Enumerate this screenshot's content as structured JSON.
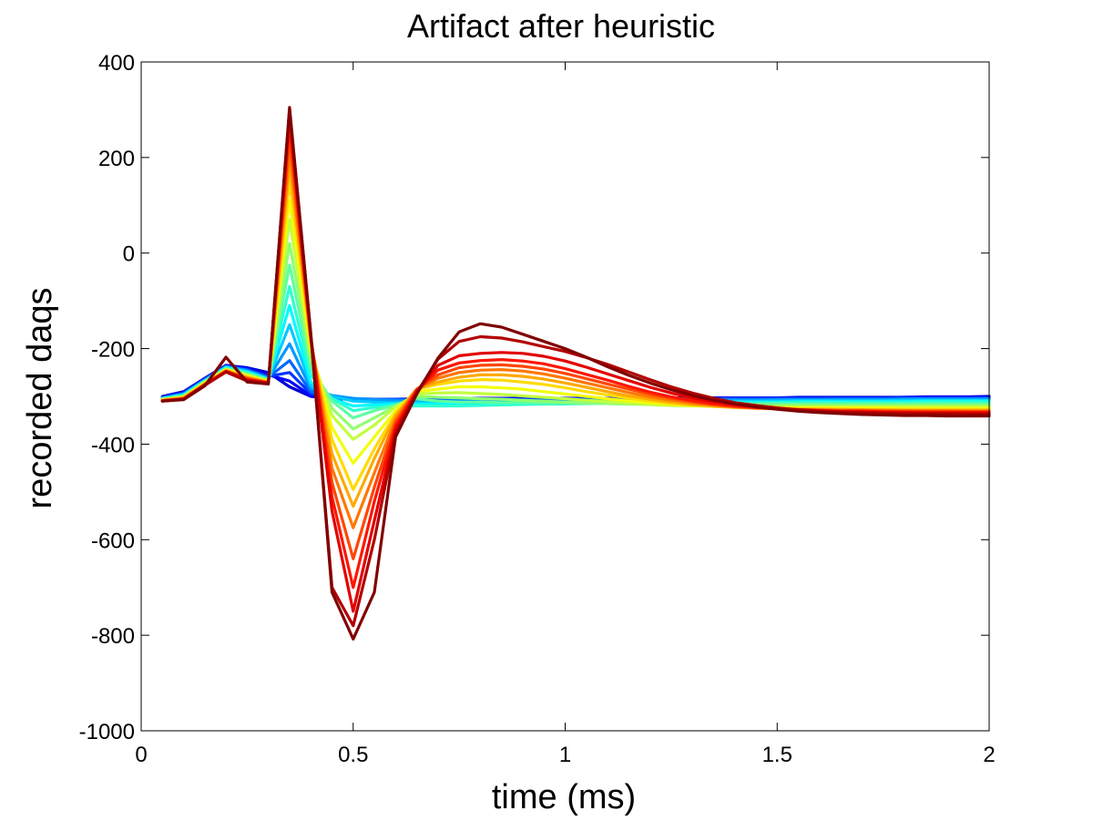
{
  "chart_data": {
    "type": "line",
    "title": "Artifact after heuristic",
    "xlabel": "time (ms)",
    "ylabel": "recorded daqs",
    "xlim": [
      0,
      2
    ],
    "ylim": [
      -1000,
      400
    ],
    "xticks": [
      0,
      0.5,
      1,
      1.5,
      2
    ],
    "xtick_labels": [
      "0",
      "0.5",
      "1",
      "1.5",
      "2"
    ],
    "yticks": [
      -1000,
      -800,
      -600,
      -400,
      -200,
      0,
      200,
      400
    ],
    "ytick_labels": [
      "-1000",
      "-800",
      "-600",
      "-400",
      "-200",
      "0",
      "200",
      "400"
    ],
    "grid": false,
    "legend": "none",
    "colormap": "jet",
    "x": [
      0.05,
      0.1,
      0.15,
      0.2,
      0.25,
      0.3,
      0.35,
      0.4,
      0.45,
      0.5,
      0.55,
      0.6,
      0.65,
      0.7,
      0.75,
      0.8,
      0.85,
      0.9,
      0.95,
      1.0,
      1.05,
      1.1,
      1.15,
      1.2,
      1.25,
      1.3,
      1.35,
      1.4,
      1.45,
      1.5,
      1.55,
      1.6,
      1.65,
      1.7,
      1.75,
      1.8,
      1.85,
      1.9,
      1.95,
      2.0
    ],
    "series": [
      {
        "values": [
          -300,
          -290,
          -262,
          -235,
          -240,
          -250,
          -280,
          -300,
          -305,
          -306,
          -306,
          -306,
          -305,
          -305,
          -304,
          -304,
          -304,
          -304,
          -304,
          -304,
          -304,
          -304,
          -303,
          -303,
          -303,
          -303,
          -303,
          -303,
          -303,
          -303,
          -302,
          -302,
          -302,
          -302,
          -302,
          -302,
          -301,
          -301,
          -301,
          -300
        ]
      },
      {
        "values": [
          -302,
          -292,
          -263,
          -236,
          -242,
          -255,
          -268,
          -298,
          -304,
          -306,
          -306,
          -306,
          -306,
          -305,
          -305,
          -305,
          -305,
          -305,
          -305,
          -305,
          -304,
          -304,
          -304,
          -304,
          -304,
          -304,
          -304,
          -304,
          -303,
          -303,
          -303,
          -303,
          -303,
          -303,
          -303,
          -302,
          -302,
          -302,
          -302,
          -302
        ]
      },
      {
        "values": [
          -302,
          -293,
          -264,
          -237,
          -243,
          -258,
          -250,
          -294,
          -303,
          -305,
          -306,
          -306,
          -306,
          -306,
          -306,
          -306,
          -306,
          -306,
          -306,
          -305,
          -305,
          -305,
          -305,
          -305,
          -305,
          -305,
          -305,
          -304,
          -304,
          -304,
          -304,
          -304,
          -304,
          -304,
          -304,
          -303,
          -303,
          -303,
          -303,
          -303
        ]
      },
      {
        "values": [
          -303,
          -294,
          -265,
          -237,
          -245,
          -260,
          -225,
          -290,
          -300,
          -305,
          -306,
          -307,
          -308,
          -308,
          -308,
          -308,
          -308,
          -308,
          -308,
          -308,
          -307,
          -307,
          -307,
          -307,
          -306,
          -306,
          -306,
          -306,
          -306,
          -306,
          -306,
          -306,
          -305,
          -305,
          -305,
          -305,
          -305,
          -305,
          -305,
          -305
        ]
      },
      {
        "values": [
          -304,
          -295,
          -266,
          -238,
          -246,
          -262,
          -190,
          -284,
          -298,
          -304,
          -307,
          -309,
          -310,
          -310,
          -310,
          -310,
          -310,
          -310,
          -310,
          -310,
          -309,
          -309,
          -309,
          -309,
          -308,
          -308,
          -308,
          -308,
          -308,
          -307,
          -307,
          -307,
          -307,
          -307,
          -307,
          -306,
          -306,
          -306,
          -306,
          -306
        ]
      },
      {
        "values": [
          -304,
          -296,
          -267,
          -239,
          -248,
          -263,
          -150,
          -278,
          -300,
          -310,
          -312,
          -313,
          -313,
          -313,
          -313,
          -313,
          -313,
          -312,
          -312,
          -312,
          -311,
          -311,
          -311,
          -311,
          -310,
          -310,
          -310,
          -310,
          -310,
          -310,
          -309,
          -309,
          -309,
          -309,
          -309,
          -308,
          -308,
          -308,
          -308,
          -308
        ]
      },
      {
        "values": [
          -305,
          -297,
          -268,
          -240,
          -249,
          -264,
          -110,
          -270,
          -305,
          -320,
          -318,
          -316,
          -316,
          -316,
          -316,
          -315,
          -315,
          -315,
          -314,
          -314,
          -313,
          -313,
          -313,
          -313,
          -312,
          -312,
          -312,
          -312,
          -312,
          -312,
          -311,
          -311,
          -311,
          -311,
          -311,
          -311,
          -310,
          -310,
          -310,
          -310
        ]
      },
      {
        "values": [
          -305,
          -298,
          -268,
          -241,
          -251,
          -265,
          -70,
          -255,
          -305,
          -330,
          -323,
          -320,
          -320,
          -320,
          -320,
          -319,
          -318,
          -317,
          -316,
          -316,
          -315,
          -315,
          -315,
          -315,
          -314,
          -314,
          -314,
          -314,
          -314,
          -313,
          -313,
          -313,
          -313,
          -313,
          -313,
          -313,
          -312,
          -312,
          -312,
          -312
        ]
      },
      {
        "values": [
          -306,
          -299,
          -269,
          -242,
          -252,
          -266,
          -25,
          -240,
          -310,
          -345,
          -330,
          -318,
          -305,
          -310,
          -312,
          -312,
          -313,
          -313,
          -314,
          -314,
          -315,
          -315,
          -316,
          -316,
          -316,
          -316,
          -316,
          -316,
          -316,
          -316,
          -316,
          -316,
          -316,
          -316,
          -316,
          -316,
          -316,
          -316,
          -316,
          -316
        ]
      },
      {
        "values": [
          -306,
          -300,
          -270,
          -243,
          -254,
          -267,
          20,
          -225,
          -325,
          -368,
          -345,
          -320,
          -300,
          -302,
          -303,
          -305,
          -306,
          -308,
          -310,
          -312,
          -313,
          -315,
          -316,
          -317,
          -318,
          -318,
          -319,
          -319,
          -319,
          -319,
          -319,
          -319,
          -319,
          -319,
          -319,
          -319,
          -319,
          -319,
          -319,
          -319
        ]
      },
      {
        "values": [
          -307,
          -301,
          -271,
          -244,
          -256,
          -268,
          70,
          -210,
          -340,
          -390,
          -360,
          -322,
          -295,
          -293,
          -292,
          -294,
          -296,
          -299,
          -302,
          -305,
          -308,
          -311,
          -314,
          -317,
          -319,
          -320,
          -321,
          -321,
          -322,
          -322,
          -322,
          -322,
          -322,
          -322,
          -322,
          -322,
          -322,
          -322,
          -322,
          -322
        ]
      },
      {
        "values": [
          -307,
          -302,
          -272,
          -244,
          -257,
          -269,
          110,
          -200,
          -365,
          -440,
          -385,
          -330,
          -290,
          -285,
          -280,
          -280,
          -282,
          -285,
          -290,
          -295,
          -300,
          -305,
          -310,
          -314,
          -317,
          -319,
          -321,
          -322,
          -323,
          -324,
          -324,
          -324,
          -324,
          -324,
          -324,
          -325,
          -325,
          -325,
          -325,
          -325
        ]
      },
      {
        "values": [
          -308,
          -303,
          -273,
          -245,
          -259,
          -270,
          150,
          -190,
          -390,
          -495,
          -410,
          -335,
          -285,
          -275,
          -268,
          -265,
          -266,
          -270,
          -275,
          -282,
          -290,
          -297,
          -304,
          -310,
          -315,
          -318,
          -321,
          -323,
          -324,
          -325,
          -326,
          -326,
          -326,
          -327,
          -327,
          -327,
          -327,
          -327,
          -327,
          -327
        ]
      },
      {
        "values": [
          -308,
          -303,
          -274,
          -246,
          -260,
          -270,
          185,
          -185,
          -420,
          -530,
          -430,
          -340,
          -285,
          -270,
          -260,
          -255,
          -255,
          -258,
          -264,
          -272,
          -281,
          -290,
          -299,
          -306,
          -312,
          -317,
          -320,
          -323,
          -325,
          -326,
          -327,
          -327,
          -328,
          -328,
          -328,
          -329,
          -329,
          -329,
          -329,
          -329
        ]
      },
      {
        "values": [
          -309,
          -304,
          -275,
          -247,
          -262,
          -271,
          215,
          -180,
          -450,
          -575,
          -460,
          -348,
          -285,
          -262,
          -250,
          -245,
          -244,
          -247,
          -253,
          -262,
          -272,
          -282,
          -292,
          -301,
          -308,
          -314,
          -318,
          -322,
          -324,
          -326,
          -327,
          -328,
          -329,
          -329,
          -330,
          -330,
          -330,
          -330,
          -331,
          -331
        ]
      },
      {
        "values": [
          -309,
          -305,
          -275,
          -247,
          -263,
          -271,
          245,
          -178,
          -480,
          -640,
          -490,
          -355,
          -285,
          -255,
          -240,
          -235,
          -234,
          -237,
          -243,
          -252,
          -263,
          -274,
          -285,
          -295,
          -304,
          -311,
          -317,
          -321,
          -324,
          -326,
          -328,
          -329,
          -330,
          -330,
          -331,
          -331,
          -332,
          -332,
          -332,
          -332
        ]
      },
      {
        "values": [
          -309,
          -305,
          -276,
          -248,
          -265,
          -272,
          270,
          -175,
          -510,
          -700,
          -520,
          -362,
          -288,
          -245,
          -230,
          -225,
          -223,
          -226,
          -232,
          -242,
          -254,
          -266,
          -279,
          -291,
          -301,
          -309,
          -315,
          -320,
          -323,
          -326,
          -328,
          -330,
          -331,
          -331,
          -332,
          -333,
          -333,
          -333,
          -333,
          -333
        ]
      },
      {
        "values": [
          -310,
          -306,
          -276,
          -248,
          -266,
          -272,
          290,
          -172,
          -540,
          -750,
          -560,
          -370,
          -290,
          -235,
          -215,
          -210,
          -208,
          -210,
          -216,
          -226,
          -239,
          -253,
          -267,
          -281,
          -293,
          -303,
          -311,
          -317,
          -322,
          -325,
          -328,
          -330,
          -332,
          -333,
          -334,
          -334,
          -335,
          -335,
          -335,
          -335
        ]
      },
      {
        "values": [
          -310,
          -306,
          -277,
          -249,
          -268,
          -273,
          300,
          -170,
          -700,
          -780,
          -600,
          -378,
          -292,
          -222,
          -185,
          -175,
          -178,
          -186,
          -196,
          -206,
          -219,
          -233,
          -249,
          -265,
          -280,
          -293,
          -304,
          -313,
          -319,
          -324,
          -328,
          -331,
          -333,
          -334,
          -335,
          -336,
          -336,
          -336,
          -337,
          -337
        ]
      },
      {
        "values": [
          -310,
          -307,
          -278,
          -218,
          -270,
          -274,
          305,
          -168,
          -710,
          -808,
          -710,
          -385,
          -295,
          -220,
          -165,
          -148,
          -155,
          -170,
          -185,
          -200,
          -218,
          -238,
          -256,
          -272,
          -286,
          -298,
          -308,
          -316,
          -322,
          -327,
          -331,
          -334,
          -336,
          -338,
          -339,
          -340,
          -340,
          -341,
          -341,
          -341
        ]
      }
    ]
  }
}
